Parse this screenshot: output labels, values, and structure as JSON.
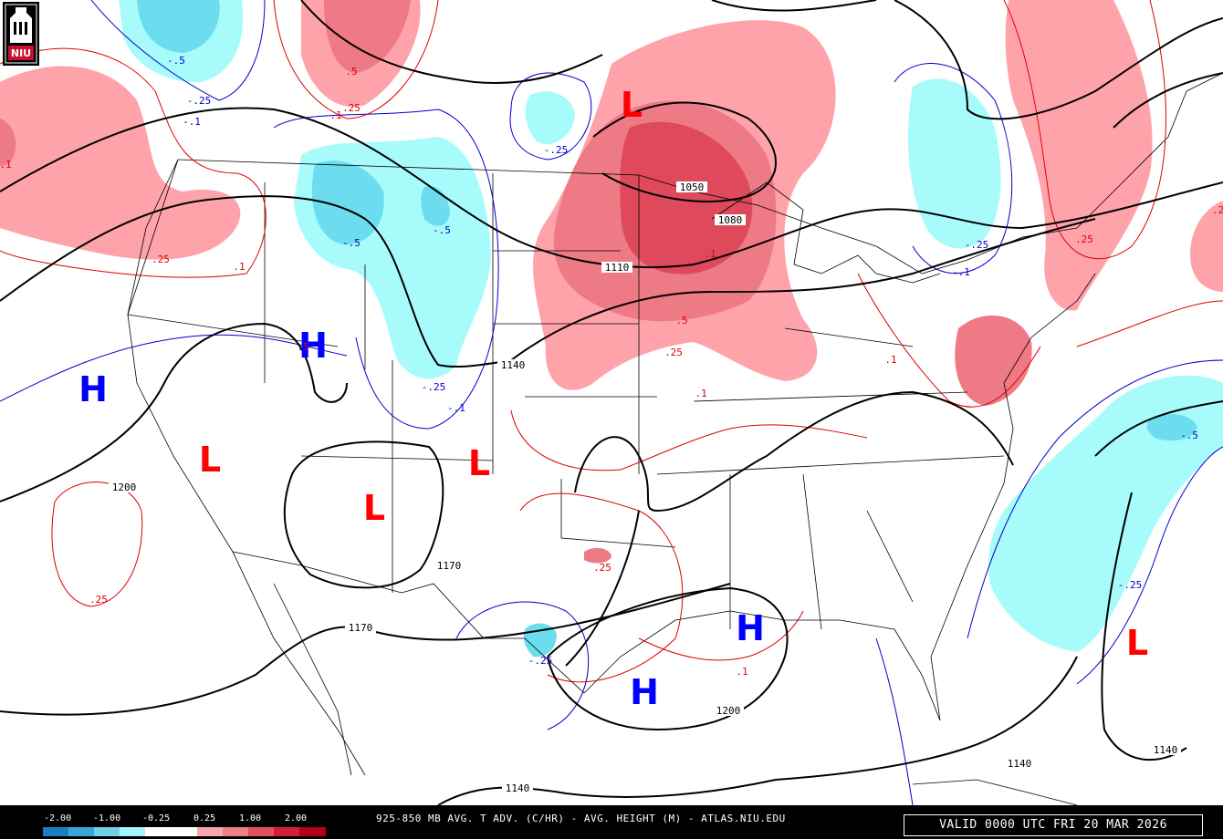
{
  "logo": {
    "text": "NIU"
  },
  "footer": {
    "title": "925-850 MB AVG. T ADV. (C/HR) - AVG. HEIGHT (M) - ATLAS.NIU.EDU",
    "valid": "VALID 0000 UTC FRI 20 MAR 2026"
  },
  "legend": {
    "ticks": [
      "-2.00",
      "-1.00",
      "-0.25",
      "0.25",
      "1.00",
      "2.00"
    ],
    "colors": [
      "#1a7fc0",
      "#3aa6d8",
      "#6fd0e6",
      "#a3f4fa",
      "#ffffff",
      "#ffffff",
      "#f6a6ae",
      "#ee7f8b",
      "#e2505f",
      "#cf2035",
      "#b0001a"
    ]
  },
  "pressure_centers": [
    {
      "type": "H",
      "color": "#0000ff"
    },
    {
      "type": "H",
      "color": "#0000ff"
    },
    {
      "type": "H",
      "color": "#0000ff"
    },
    {
      "type": "H",
      "color": "#0000ff"
    },
    {
      "type": "L",
      "color": "#ff0000"
    },
    {
      "type": "L",
      "color": "#ff0000"
    },
    {
      "type": "L",
      "color": "#ff0000"
    },
    {
      "type": "L",
      "color": "#ff0000"
    },
    {
      "type": "L",
      "color": "#ff0000"
    }
  ],
  "height_labels": [
    "1050",
    "1080",
    "1110",
    "1140",
    "1170",
    "1200",
    "1170",
    "1200",
    "1140",
    "1140",
    "1140"
  ],
  "advection_labels": [
    ".5",
    ".25",
    ".1",
    ".25",
    ".1",
    ".5",
    ".25",
    ".1",
    ".1",
    ".25",
    ".1",
    ".25",
    ".25",
    ".1",
    ".25",
    ".1",
    "-.5",
    "-.25",
    "-.1",
    "-.5",
    "-.5",
    "-.25",
    "-.25",
    "-.1",
    "-.1",
    "-.25",
    "-.5",
    "-.25",
    "-.25",
    ".5"
  ],
  "colors": {
    "warm_light": "#ffa3ab",
    "warm_mid": "#ee7a86",
    "warm_dark": "#de4a5b",
    "cold_light": "#a8fbfb",
    "cold_mid": "#6cdcef",
    "height_line": "#000000",
    "warm_contour": "#dd0000",
    "cold_contour": "#0000cc"
  }
}
